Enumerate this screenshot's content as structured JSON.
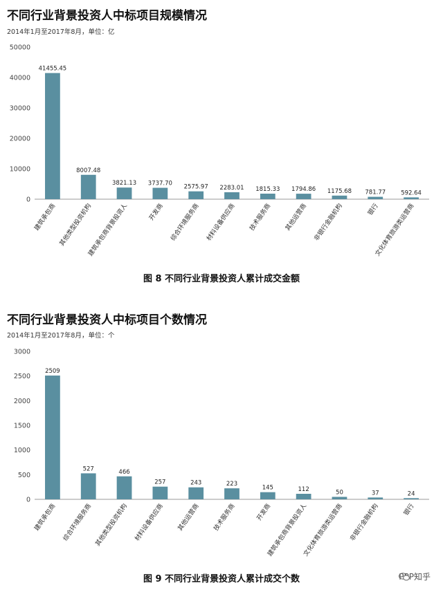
{
  "charts": [
    {
      "title": "不同行业背景投资人中标项目规模情况",
      "subtitle": "2014年1月至2017年8月，单位：亿",
      "figure_caption": "图 8    不同行业背景投资人累计成交金额"
    },
    {
      "title": "不同行业背景投资人中标项目个数情况",
      "subtitle": "2014年1月至2017年8月，单位：个",
      "figure_caption": "图 9    不同行业背景投资人累计成交个数"
    }
  ],
  "watermark": "PPP知乎",
  "colors": {
    "bar": "#5a8fa0",
    "axis": "#999999"
  },
  "chart_data": [
    {
      "type": "bar",
      "title": "不同行业背景投资人中标项目规模情况",
      "subtitle": "2014年1月至2017年8月，单位：亿",
      "categories": [
        "建筑承包商",
        "其他类型投资机构",
        "建筑承包商背景投资人",
        "开发商",
        "综合环境服务商",
        "材料设备供应商",
        "技术服务商",
        "其他运营商",
        "非银行金融机构",
        "银行",
        "文化体育旅游类运营商"
      ],
      "values": [
        41455.45,
        8007.48,
        3821.13,
        3737.7,
        2575.97,
        2283.01,
        1815.33,
        1794.86,
        1175.68,
        781.77,
        592.64
      ],
      "value_labels": [
        "41455.45",
        "8007.48",
        "3821.13",
        "3737.70",
        "2575.97",
        "2283.01",
        "1815.33",
        "1794.86",
        "1175.68",
        "781.77",
        "592.64"
      ],
      "yticks": [
        "0",
        "10000",
        "20000",
        "30000",
        "40000",
        "50000"
      ],
      "ylim": [
        0,
        50000
      ],
      "xlabel": "",
      "ylabel": "",
      "grid": false
    },
    {
      "type": "bar",
      "title": "不同行业背景投资人中标项目个数情况",
      "subtitle": "2014年1月至2017年8月，单位：个",
      "categories": [
        "建筑承包商",
        "综合环境服务商",
        "其他类型投资机构",
        "材料设备供应商",
        "其他运营商",
        "技术服务商",
        "开发商",
        "建筑承包商背景投资人",
        "文化体育旅游类运营商",
        "非银行金融机构",
        "银行"
      ],
      "values": [
        2509,
        527,
        466,
        257,
        243,
        223,
        145,
        112,
        50,
        37,
        24
      ],
      "value_labels": [
        "2509",
        "527",
        "466",
        "257",
        "243",
        "223",
        "145",
        "112",
        "50",
        "37",
        "24"
      ],
      "yticks": [
        "0",
        "500",
        "1000",
        "1500",
        "2000",
        "2500",
        "3000"
      ],
      "ylim": [
        0,
        3000
      ],
      "xlabel": "",
      "ylabel": "",
      "grid": false
    }
  ]
}
